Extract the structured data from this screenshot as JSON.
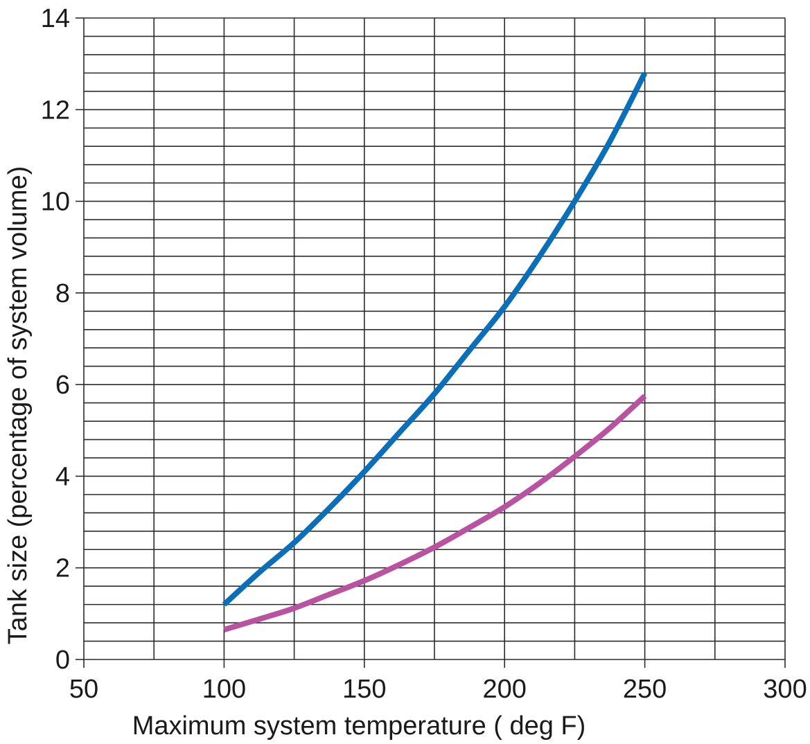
{
  "chart_data": {
    "type": "line",
    "title": "",
    "xlabel": "Maximum system temperature ( deg F)",
    "ylabel": "Tank size (percentage of system volume)",
    "xlim": [
      50,
      300
    ],
    "ylim": [
      0,
      14
    ],
    "x_ticks": [
      50,
      100,
      150,
      200,
      250,
      300
    ],
    "y_ticks": [
      0,
      2,
      4,
      6,
      8,
      10,
      12,
      14
    ],
    "x_minor_step": 25,
    "y_minor_step": 0.4,
    "grid": true,
    "legend": "none",
    "series": [
      {
        "color": "#0a6fb8",
        "x": [
          100,
          112.5,
          125,
          137.5,
          150,
          162.5,
          175,
          187.5,
          200,
          212.5,
          225,
          237.5,
          250
        ],
        "values": [
          1.2,
          1.9,
          2.55,
          3.3,
          4.1,
          4.95,
          5.8,
          6.75,
          7.7,
          8.8,
          10.0,
          11.3,
          12.8
        ]
      },
      {
        "color": "#b9529f",
        "x": [
          100,
          112.5,
          125,
          137.5,
          150,
          162.5,
          175,
          187.5,
          200,
          212.5,
          225,
          237.5,
          250
        ],
        "values": [
          0.65,
          0.88,
          1.12,
          1.42,
          1.72,
          2.07,
          2.45,
          2.88,
          3.33,
          3.85,
          4.43,
          5.05,
          5.75
        ]
      }
    ]
  }
}
